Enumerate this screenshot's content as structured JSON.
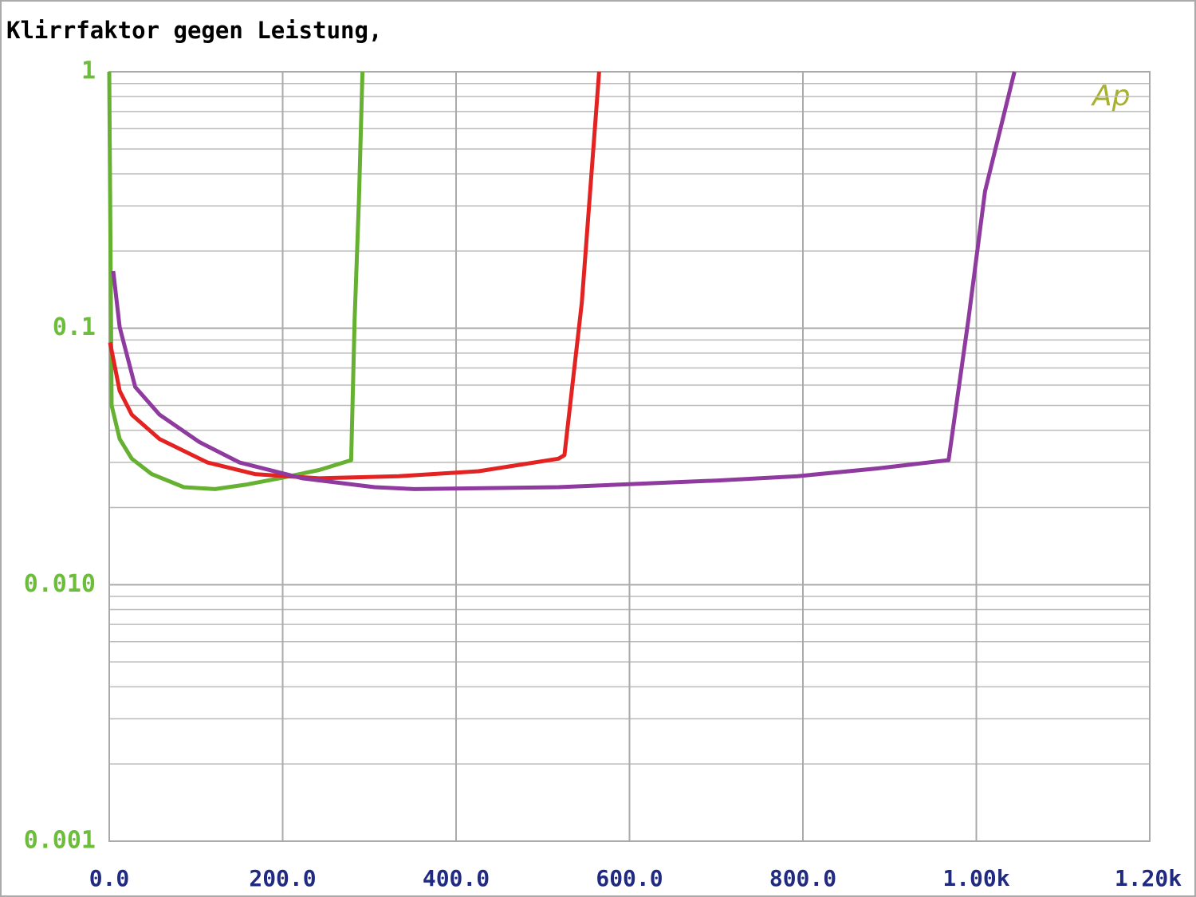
{
  "chart_data": {
    "type": "line",
    "title": "Klirrfaktor gegen Leistung,",
    "logo": "Ap",
    "log_y": true,
    "grid": true,
    "minor_grid": true,
    "xlim": [
      0,
      1200
    ],
    "xticks": [
      {
        "value": 0,
        "label": "0.0"
      },
      {
        "value": 200,
        "label": "200.0"
      },
      {
        "value": 400,
        "label": "400.0"
      },
      {
        "value": 600,
        "label": "600.0"
      },
      {
        "value": 800,
        "label": "800.0"
      },
      {
        "value": 1000,
        "label": "1.00k"
      },
      {
        "value": 1200,
        "label": "1.20k"
      }
    ],
    "ylim": [
      0.001,
      1
    ],
    "yticks": [
      0.001,
      {
        "value": 0.01,
        "label": "0.010"
      },
      0.1,
      1
    ],
    "series": [
      {
        "color": "#66b032",
        "x": [
          0,
          2.8,
          12,
          26,
          49,
          86,
          122,
          159,
          196,
          242,
          279,
          283,
          288,
          292
        ],
        "values": [
          1,
          0.05,
          0.037,
          0.031,
          0.027,
          0.024,
          0.0236,
          0.0246,
          0.026,
          0.028,
          0.0306,
          0.109,
          0.318,
          1
        ]
      },
      {
        "color": "#e32222",
        "x": [
          0.9,
          12,
          26,
          58,
          113,
          168,
          242,
          334,
          426,
          518,
          525,
          545,
          565
        ],
        "values": [
          0.088,
          0.057,
          0.046,
          0.037,
          0.03,
          0.027,
          0.026,
          0.0265,
          0.0277,
          0.031,
          0.032,
          0.126,
          1
        ]
      },
      {
        "color": "#8e3a9e",
        "x": [
          4.6,
          12,
          30,
          58,
          104,
          150,
          223,
          306,
          352,
          518,
          702,
          794,
          886,
          968,
          991,
          1010,
          1044
        ],
        "values": [
          0.167,
          0.101,
          0.059,
          0.046,
          0.036,
          0.03,
          0.026,
          0.024,
          0.0236,
          0.024,
          0.0255,
          0.0265,
          0.0284,
          0.0306,
          0.109,
          0.342,
          1
        ]
      }
    ]
  }
}
